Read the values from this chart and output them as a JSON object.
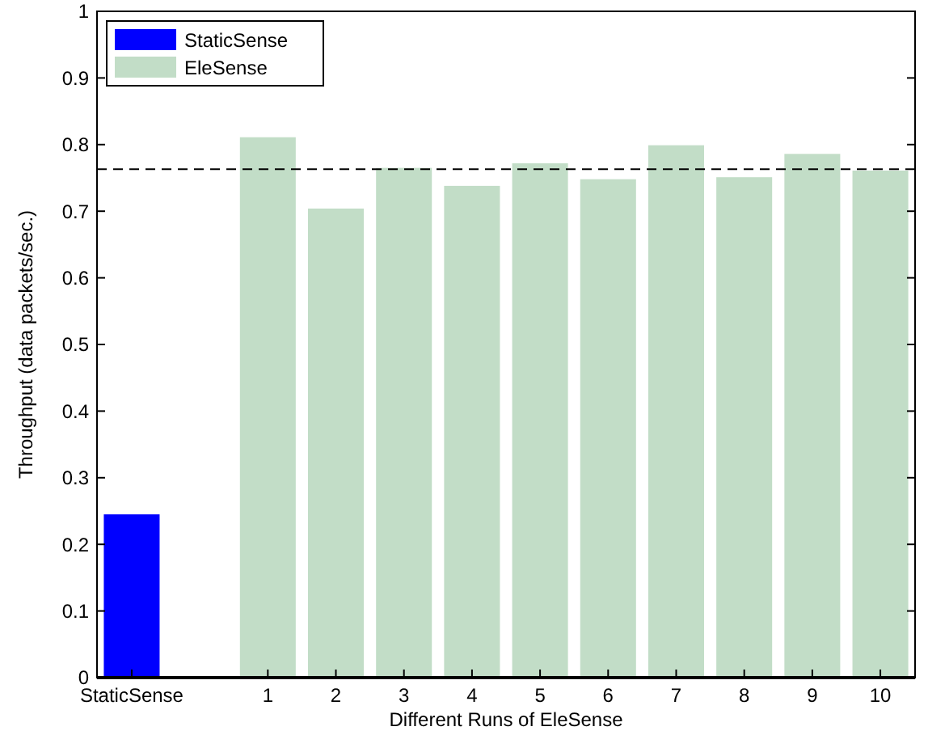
{
  "chart_data": {
    "type": "bar",
    "xlabel": "Different Runs of EleSense",
    "ylabel": "Throughput (data packets/sec.)",
    "categories": [
      "StaticSense",
      null,
      "1",
      "2",
      "3",
      "4",
      "5",
      "6",
      "7",
      "8",
      "9",
      "10"
    ],
    "series": [
      {
        "name": "StaticSense",
        "color": "#0000ff",
        "values": [
          0.245,
          null,
          null,
          null,
          null,
          null,
          null,
          null,
          null,
          null,
          null,
          null
        ]
      },
      {
        "name": "EleSense",
        "color": "#c2ddc7",
        "values": [
          null,
          null,
          0.811,
          0.704,
          0.765,
          0.738,
          0.772,
          0.748,
          0.799,
          0.751,
          0.786,
          0.761
        ]
      }
    ],
    "ylim": [
      0,
      1
    ],
    "yticks": [
      0,
      0.1,
      0.2,
      0.3,
      0.4,
      0.5,
      0.6,
      0.7,
      0.8,
      0.9,
      1
    ],
    "ref_lines": [
      {
        "axis": "y",
        "value": 0.763,
        "line_style": "dashed",
        "color": "#000000"
      }
    ],
    "legend": "top left",
    "grid": false
  }
}
